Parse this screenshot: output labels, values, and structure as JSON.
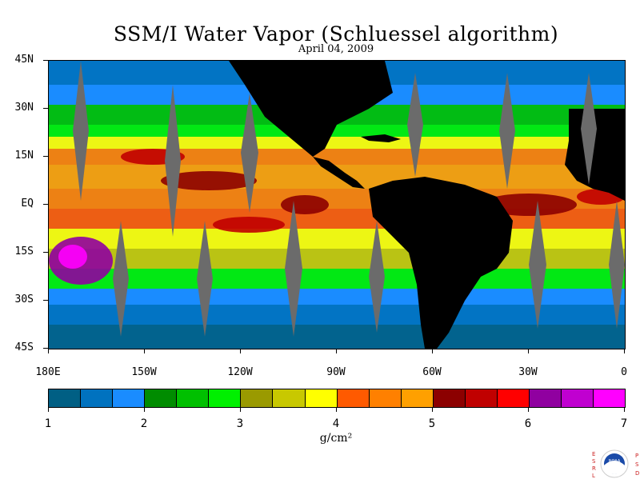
{
  "title": "SSM/I Water Vapor (Schluessel algorithm)",
  "date": "April 04, 2009",
  "map": {
    "lat_labels": [
      "45N",
      "30N",
      "15N",
      "EQ",
      "15S",
      "30S",
      "45S"
    ],
    "lon_labels": [
      "180E",
      "150W",
      "120W",
      "90W",
      "60W",
      "30W",
      "0"
    ],
    "lat_range": [
      -45,
      45
    ],
    "lon_range": [
      -180,
      0
    ],
    "colors": {
      "ocean_base": "#0a84f2",
      "land": "#000000",
      "no_data": "#6b6b6b"
    }
  },
  "colorbar": {
    "labels": [
      "1",
      "2",
      "3",
      "4",
      "5",
      "6",
      "7"
    ],
    "range": [
      1,
      7
    ],
    "units": "g/cm²",
    "colors": [
      "#005f84",
      "#0072bf",
      "#1a8cff",
      "#008c00",
      "#00c000",
      "#00f000",
      "#9a9a00",
      "#c8c800",
      "#ffff00",
      "#ff5a00",
      "#ff8000",
      "#ffa000",
      "#8c0000",
      "#c00000",
      "#ff0000",
      "#9000a0",
      "#c000d0",
      "#ff00ff"
    ]
  },
  "logo": {
    "left_letters": [
      "E",
      "S",
      "R",
      "L"
    ],
    "right_letters": [
      "P",
      "S",
      "D"
    ],
    "center_text": "NOAA"
  }
}
